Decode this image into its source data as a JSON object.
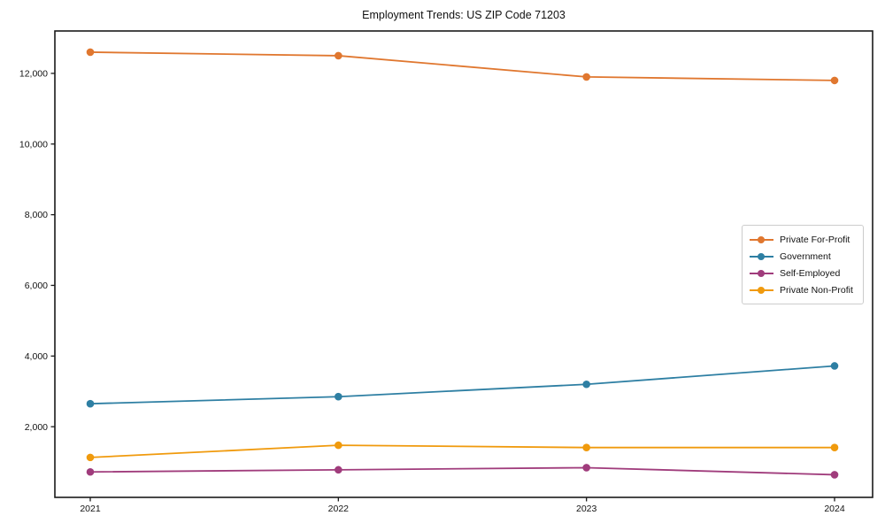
{
  "chart_data": {
    "type": "line",
    "title": "Employment Trends: US ZIP Code 71203",
    "x_labels": [
      "2021",
      "2022",
      "2023",
      "2024"
    ],
    "series": [
      {
        "name": "Private For-Profit",
        "color": "#E0772F",
        "values": [
          12600,
          12500,
          11900,
          11800
        ]
      },
      {
        "name": "Government",
        "color": "#2E7FA3",
        "values": [
          2650,
          2850,
          3200,
          3720
        ]
      },
      {
        "name": "Self-Employed",
        "color": "#A03C7C",
        "values": [
          720,
          780,
          840,
          640
        ]
      },
      {
        "name": "Private Non-Profit",
        "color": "#F09A0D",
        "values": [
          1130,
          1475,
          1410,
          1410
        ]
      }
    ],
    "ylim": [
      0,
      13200
    ],
    "yticks": [
      2000,
      4000,
      6000,
      8000,
      10000,
      12000
    ],
    "ytick_labels": [
      "2,000",
      "4,000",
      "6,000",
      "8,000",
      "10,000",
      "12,000"
    ],
    "grid": false,
    "legend_position": "center-right",
    "frame_color": "#1a1a1a",
    "marker": "circle"
  }
}
